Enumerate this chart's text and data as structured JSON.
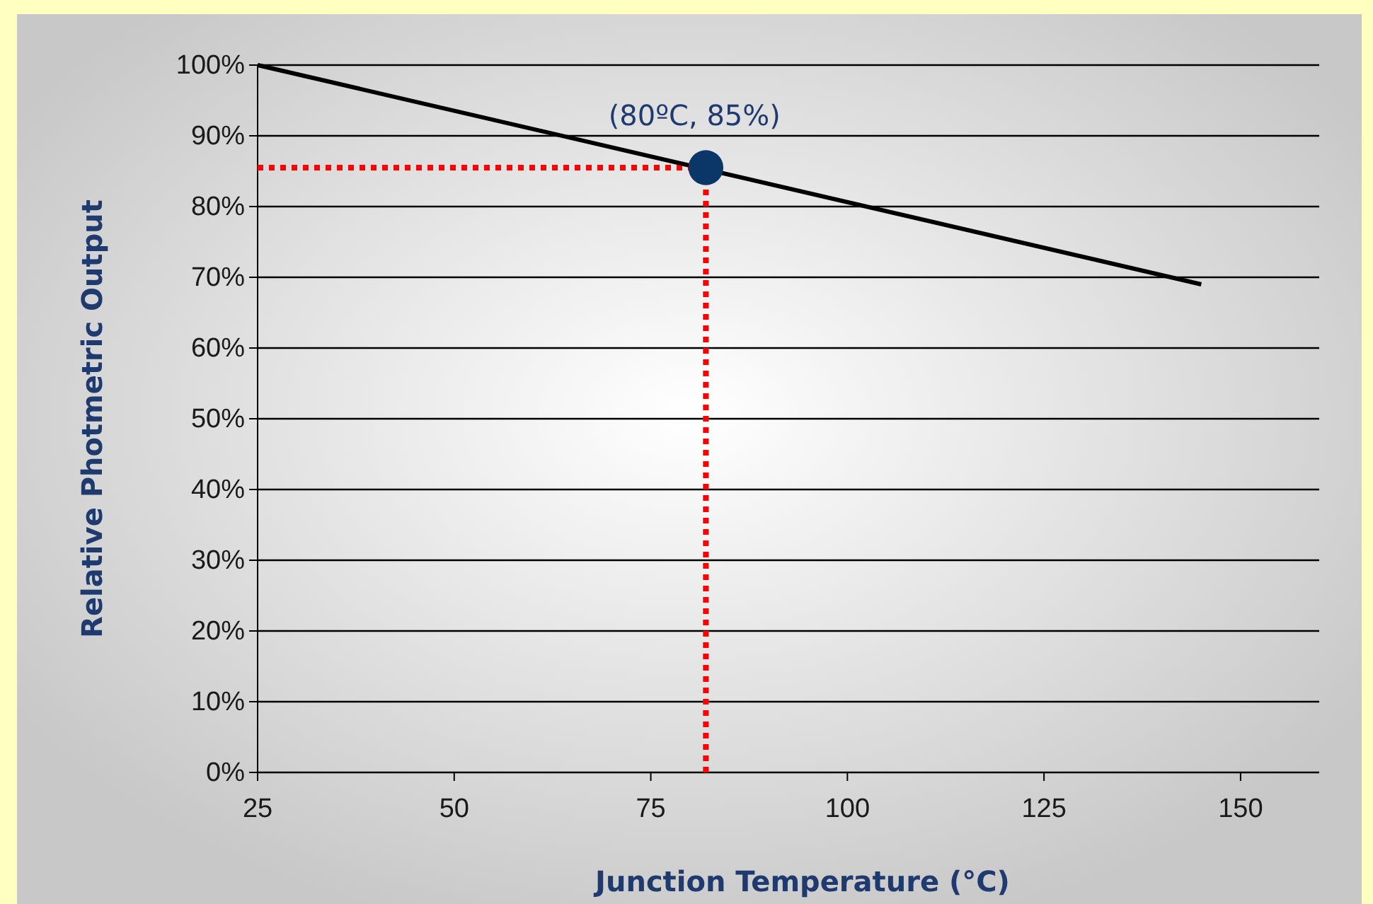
{
  "chart_data": {
    "type": "line",
    "xlabel": "Junction Temperature (°C)",
    "ylabel": "Relative Photmetric Output",
    "xlim": [
      25,
      160
    ],
    "xticks": [
      25,
      50,
      75,
      100,
      125,
      150
    ],
    "ylim": [
      0,
      100
    ],
    "yticks": [
      {
        "value": 0,
        "label": "0%"
      },
      {
        "value": 10,
        "label": "10%"
      },
      {
        "value": 20,
        "label": "20%"
      },
      {
        "value": 30,
        "label": "30%"
      },
      {
        "value": 40,
        "label": "40%"
      },
      {
        "value": 50,
        "label": "50%"
      },
      {
        "value": 60,
        "label": "60%"
      },
      {
        "value": 70,
        "label": "70%"
      },
      {
        "value": 80,
        "label": "80%"
      },
      {
        "value": 90,
        "label": "90%"
      },
      {
        "value": 100,
        "label": "100%"
      }
    ],
    "grid": "y",
    "series": [
      {
        "color": "#000000",
        "x": [
          25,
          145
        ],
        "values": [
          100,
          69
        ]
      },
      {
        "type": "scatter",
        "color": "#0b3768",
        "x": [
          82
        ],
        "values": [
          85.5
        ],
        "marker": "circle"
      }
    ],
    "ref_lines": [
      {
        "axis": "x",
        "value": 82,
        "color": "#ff0000",
        "line_style": "dotted"
      },
      {
        "axis": "y",
        "value": 85.5,
        "color": "#ff0000",
        "line_style": "dotted"
      }
    ],
    "annotations": [
      {
        "text": "(80ºC, 85%)",
        "x": 82,
        "y": 85.5
      }
    ]
  }
}
